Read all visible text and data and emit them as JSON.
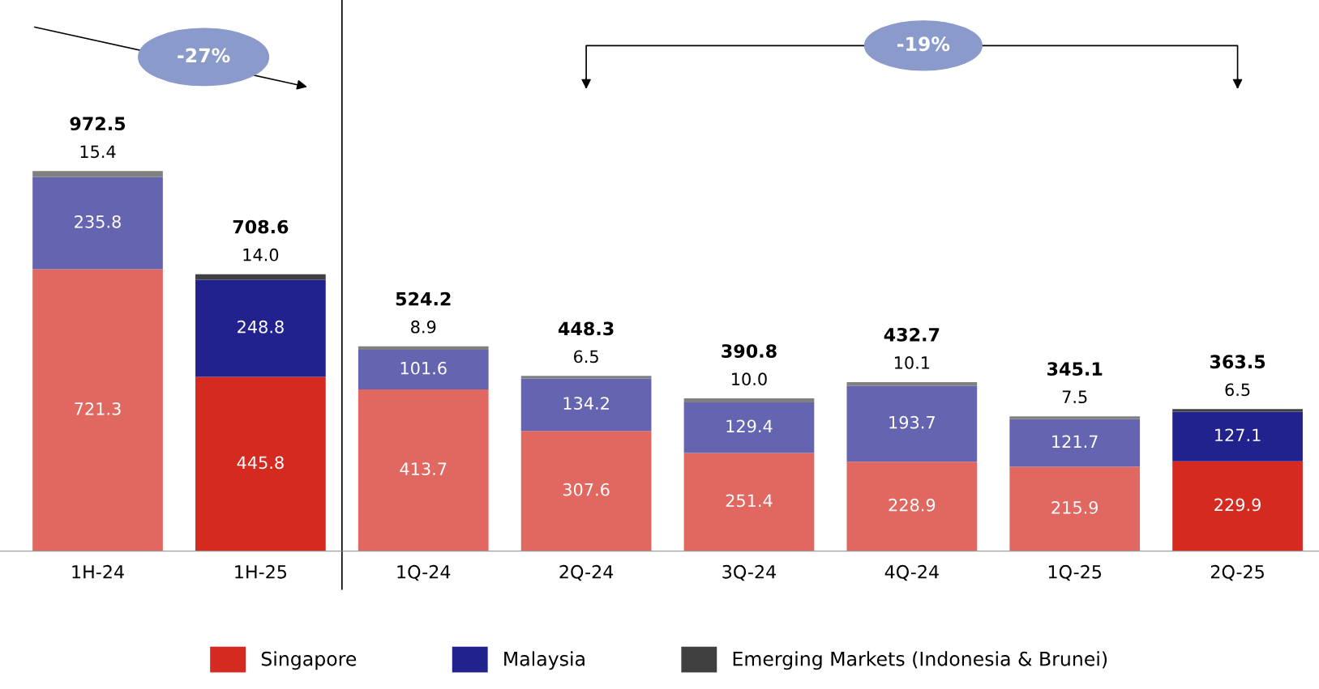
{
  "chart_data": {
    "type": "bar",
    "stacked": true,
    "legend": "bottom",
    "grid": false,
    "categories": [
      "1H-24",
      "1H-25",
      "1Q-24",
      "2Q-24",
      "3Q-24",
      "4Q-24",
      "1Q-25",
      "2Q-25"
    ],
    "series": [
      {
        "name": "Singapore",
        "color": "#d42a20",
        "colors": [
          "#e06860",
          "#d42a20",
          "#e06860",
          "#e06860",
          "#e06860",
          "#e06860",
          "#e06860",
          "#d42a20"
        ],
        "values": [
          721.3,
          445.8,
          413.7,
          307.6,
          251.4,
          228.9,
          215.9,
          229.9
        ],
        "value_labels": [
          "721.3",
          "445.8",
          "413.7",
          "307.6",
          "251.4",
          "228.9",
          "215.9",
          "229.9"
        ]
      },
      {
        "name": "Malaysia",
        "color": "#22228f",
        "colors": [
          "#6464b0",
          "#22228f",
          "#6464b0",
          "#6464b0",
          "#6464b0",
          "#6464b0",
          "#6464b0",
          "#22228f"
        ],
        "values": [
          235.8,
          248.8,
          101.6,
          134.2,
          129.4,
          193.7,
          121.7,
          127.1
        ],
        "value_labels": [
          "235.8",
          "248.8",
          "101.6",
          "134.2",
          "129.4",
          "193.7",
          "121.7",
          "127.1"
        ]
      },
      {
        "name": "Emerging Markets (Indonesia & Brunei)",
        "color": "#404040",
        "colors": [
          "#808080",
          "#404040",
          "#808080",
          "#808080",
          "#808080",
          "#808080",
          "#808080",
          "#404040"
        ],
        "values": [
          15.4,
          14.0,
          8.9,
          6.5,
          10.0,
          10.1,
          7.5,
          6.5
        ],
        "value_labels": [
          "15.4",
          "14.0",
          "8.9",
          "6.5",
          "10.0",
          "10.1",
          "7.5",
          "6.5"
        ]
      }
    ],
    "totals": [
      "972.5",
      "708.6",
      "524.2",
      "448.3",
      "390.8",
      "432.7",
      "345.1",
      "363.5"
    ],
    "annotations": [
      "-27%",
      "-19%"
    ]
  }
}
